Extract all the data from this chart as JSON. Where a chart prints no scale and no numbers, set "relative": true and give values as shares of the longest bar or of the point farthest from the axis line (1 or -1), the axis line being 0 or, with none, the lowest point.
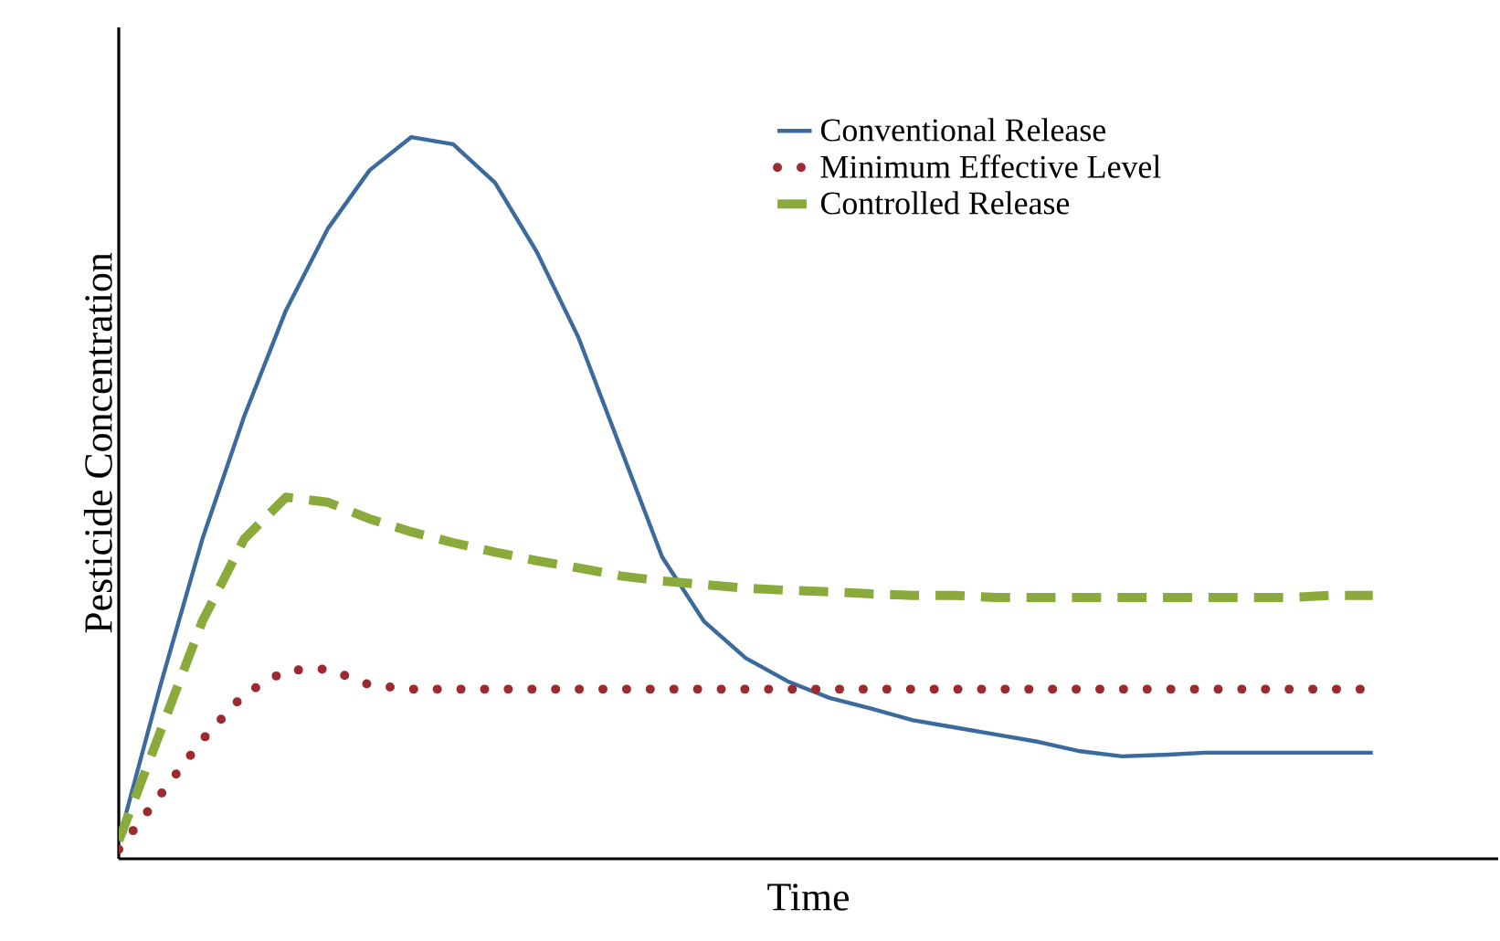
{
  "chart_data": {
    "type": "line",
    "relative": true,
    "xlabel": "Time",
    "ylabel": "Pesticide Concentration",
    "legend": "top right",
    "marker": "none",
    "categories": [
      null,
      null,
      null,
      null,
      null,
      null,
      null,
      null,
      null,
      null,
      null,
      null,
      null,
      null,
      null,
      null,
      null,
      null,
      null,
      null,
      null,
      null,
      null,
      null,
      null,
      null,
      null,
      null,
      null,
      null,
      null
    ],
    "series": [
      {
        "name": "Conventional Release",
        "color": "#3b6a9c",
        "line_style": "solid",
        "values": [
          0.025,
          0.241,
          0.443,
          0.613,
          0.76,
          0.873,
          0.954,
          1.0,
          0.99,
          0.937,
          0.841,
          0.722,
          0.57,
          0.418,
          0.329,
          0.278,
          0.246,
          0.223,
          0.208,
          0.192,
          0.182,
          0.172,
          0.162,
          0.149,
          0.142,
          0.144,
          0.147,
          0.147,
          0.147,
          0.147,
          0.147
        ]
      },
      {
        "name": "Minimum Effective Level",
        "color": "#9c2a2e",
        "line_style": "dotted",
        "values": [
          0.013,
          0.089,
          0.165,
          0.228,
          0.261,
          0.263,
          0.241,
          0.235,
          0.235,
          0.235,
          0.235,
          0.235,
          0.235,
          0.235,
          0.235,
          0.235,
          0.235,
          0.235,
          0.235,
          0.235,
          0.235,
          0.235,
          0.235,
          0.235,
          0.235,
          0.235,
          0.235,
          0.235,
          0.235,
          0.235,
          0.235
        ]
      },
      {
        "name": "Controlled Release",
        "color": "#8aab3c",
        "line_style": "dashed",
        "values": [
          0.025,
          0.177,
          0.329,
          0.443,
          0.501,
          0.494,
          0.471,
          0.453,
          0.438,
          0.425,
          0.413,
          0.403,
          0.392,
          0.385,
          0.38,
          0.375,
          0.372,
          0.37,
          0.367,
          0.365,
          0.365,
          0.362,
          0.362,
          0.362,
          0.362,
          0.362,
          0.362,
          0.362,
          0.362,
          0.365,
          0.365
        ]
      }
    ]
  }
}
